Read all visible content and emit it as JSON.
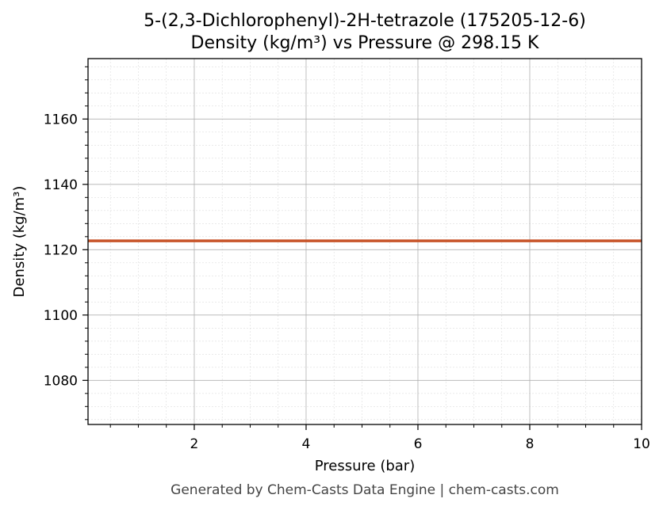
{
  "chart_data": {
    "type": "line",
    "title": "5-(2,3-Dichlorophenyl)-2H-tetrazole (175205-12-6)",
    "subtitle": "Density (kg/m³) vs Pressure @ 298.15 K",
    "xlabel": "Pressure (bar)",
    "ylabel": "Density (kg/m³)",
    "xlim": [
      0.1,
      10
    ],
    "ylim": [
      1066.5,
      1178.5
    ],
    "x_major_ticks": [
      2,
      4,
      6,
      8,
      10
    ],
    "x_minor_step": 0.5,
    "y_major_ticks": [
      1080,
      1100,
      1120,
      1140,
      1160
    ],
    "y_minor_step": 4,
    "grid": true,
    "series": [
      {
        "color": "#c8552a",
        "x": [
          0.1,
          1,
          2,
          3,
          4,
          5,
          6,
          7,
          8,
          9,
          10
        ],
        "y": [
          1122.7,
          1122.7,
          1122.7,
          1122.7,
          1122.7,
          1122.7,
          1122.7,
          1122.7,
          1122.7,
          1122.7,
          1122.7
        ]
      }
    ]
  },
  "footer": "Generated by Chem-Casts Data Engine | chem-casts.com"
}
